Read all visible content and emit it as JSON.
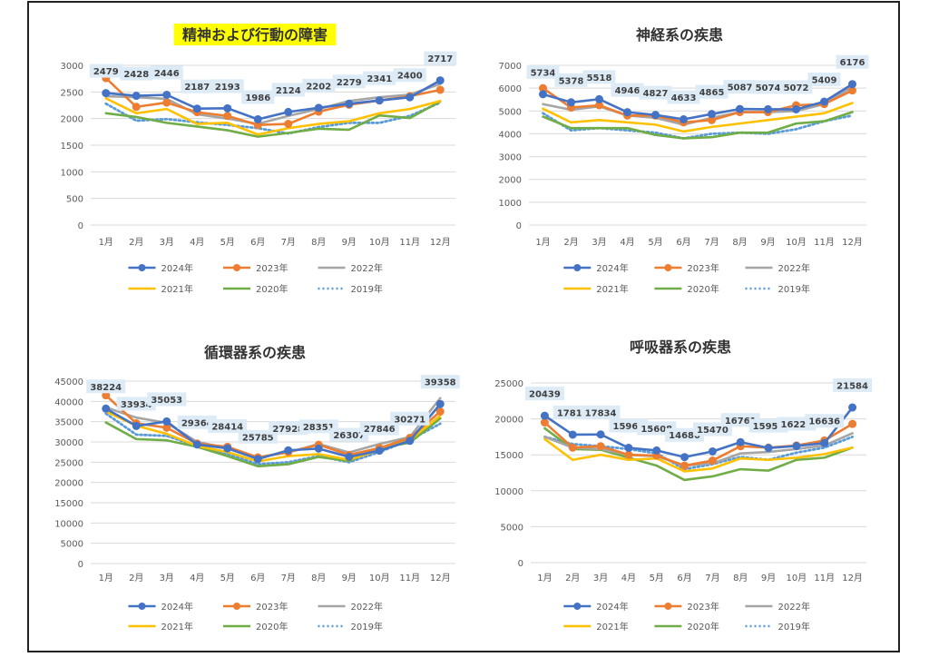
{
  "months": [
    "1月",
    "2月",
    "3月",
    "4月",
    "5月",
    "6月",
    "7月",
    "8月",
    "9月",
    "10月",
    "11月",
    "12月"
  ],
  "series_styles": [
    {
      "name": "2024年",
      "color": "#4472C4",
      "marker": true,
      "dash": ""
    },
    {
      "name": "2023年",
      "color": "#ED7D31",
      "marker": true,
      "dash": ""
    },
    {
      "name": "2022年",
      "color": "#A5A5A5",
      "marker": false,
      "dash": ""
    },
    {
      "name": "2021年",
      "color": "#FFC000",
      "marker": false,
      "dash": ""
    },
    {
      "name": "2020年",
      "color": "#70AD47",
      "marker": false,
      "dash": ""
    },
    {
      "name": "2019年",
      "color": "#5B9BD5",
      "marker": false,
      "dash": "2 3"
    }
  ],
  "label_bg": "#DDEBF7",
  "title_highlight": "#FFFF00",
  "chart_data": [
    {
      "type": "line",
      "title": "精神および行動の障害",
      "highlight_title": true,
      "ylim": [
        0,
        3000
      ],
      "ytick": 500,
      "categories": [
        "1月",
        "2月",
        "3月",
        "4月",
        "5月",
        "6月",
        "7月",
        "8月",
        "9月",
        "10月",
        "11月",
        "12月"
      ],
      "series": [
        {
          "name": "2024年",
          "values": [
            2479,
            2428,
            2446,
            2187,
            2193,
            1986,
            2124,
            2202,
            2279,
            2341,
            2400,
            2717
          ]
        },
        {
          "name": "2023年",
          "values": [
            2760,
            2220,
            2300,
            2120,
            2050,
            1880,
            1900,
            2130,
            2260,
            2340,
            2420,
            2540
          ]
        },
        {
          "name": "2022年",
          "values": [
            2420,
            2400,
            2370,
            2080,
            2000,
            1900,
            2050,
            2180,
            2330,
            2400,
            2450,
            2650
          ]
        },
        {
          "name": "2021年",
          "values": [
            2380,
            2100,
            2180,
            1900,
            1920,
            1700,
            1820,
            1900,
            1950,
            2100,
            2180,
            2330
          ]
        },
        {
          "name": "2020年",
          "values": [
            2100,
            2030,
            1920,
            1850,
            1780,
            1660,
            1730,
            1810,
            1790,
            2060,
            2010,
            2320
          ]
        },
        {
          "name": "2019年",
          "values": [
            2280,
            1960,
            1990,
            1930,
            1880,
            1820,
            1720,
            1840,
            1920,
            1920,
            2050,
            2300
          ]
        }
      ],
      "data_labels": [
        2479,
        2428,
        2446,
        2187,
        2193,
        1986,
        2124,
        2202,
        2279,
        2341,
        2400,
        2717
      ],
      "legend": "bottom"
    },
    {
      "type": "line",
      "title": "神経系の疾患",
      "highlight_title": false,
      "ylim": [
        0,
        7000
      ],
      "ytick": 1000,
      "categories": [
        "1月",
        "2月",
        "3月",
        "4月",
        "5月",
        "6月",
        "7月",
        "8月",
        "9月",
        "10月",
        "11月",
        "12月"
      ],
      "series": [
        {
          "name": "2024年",
          "values": [
            5734,
            5378,
            5518,
            4946,
            4827,
            4633,
            4865,
            5087,
            5074,
            5072,
            5409,
            6176
          ]
        },
        {
          "name": "2023年",
          "values": [
            6000,
            5150,
            5250,
            4800,
            4800,
            4500,
            4600,
            4950,
            4950,
            5250,
            5300,
            5900
          ]
        },
        {
          "name": "2022年",
          "values": [
            5300,
            5050,
            5200,
            4800,
            4700,
            4400,
            4700,
            4950,
            4950,
            5000,
            5300,
            6050
          ]
        },
        {
          "name": "2021年",
          "values": [
            5100,
            4500,
            4600,
            4500,
            4400,
            4100,
            4300,
            4450,
            4600,
            4750,
            4900,
            5350
          ]
        },
        {
          "name": "2020年",
          "values": [
            4750,
            4250,
            4250,
            4250,
            3950,
            3800,
            3850,
            4050,
            4050,
            4450,
            4550,
            4950
          ]
        },
        {
          "name": "2019年",
          "values": [
            4900,
            4150,
            4250,
            4150,
            4050,
            3800,
            4000,
            4050,
            4000,
            4200,
            4550,
            4800
          ]
        }
      ],
      "data_labels": [
        5734,
        5378,
        5518,
        4946,
        4827,
        4633,
        4865,
        5087,
        5074,
        5072,
        5409,
        6176
      ],
      "legend": "bottom"
    },
    {
      "type": "line",
      "title": "循環器系の疾患",
      "highlight_title": false,
      "ylim": [
        0,
        45000
      ],
      "ytick": 5000,
      "categories": [
        "1月",
        "2月",
        "3月",
        "4月",
        "5月",
        "6月",
        "7月",
        "8月",
        "9月",
        "10月",
        "11月",
        "12月"
      ],
      "series": [
        {
          "name": "2024年",
          "values": [
            38224,
            33934,
            35053,
            29364,
            28414,
            25785,
            27928,
            28351,
            26307,
            27846,
            30271,
            39358
          ]
        },
        {
          "name": "2023年",
          "values": [
            41500,
            34600,
            33500,
            29600,
            28800,
            26200,
            27500,
            29300,
            26800,
            28500,
            31000,
            37500
          ]
        },
        {
          "name": "2022年",
          "values": [
            38500,
            36000,
            34700,
            30000,
            28500,
            26200,
            27400,
            29500,
            27400,
            29500,
            31200,
            40800
          ]
        },
        {
          "name": "2021年",
          "values": [
            37500,
            34000,
            32000,
            29000,
            27500,
            25200,
            26500,
            27000,
            25600,
            28000,
            30500,
            36500
          ]
        },
        {
          "name": "2020年",
          "values": [
            34800,
            30700,
            30400,
            28800,
            26500,
            24000,
            24500,
            26300,
            25300,
            28500,
            29800,
            35800
          ]
        },
        {
          "name": "2019年",
          "values": [
            37000,
            31800,
            31500,
            29000,
            27000,
            24500,
            25000,
            26500,
            25000,
            27500,
            30500,
            34500
          ]
        }
      ],
      "data_labels": [
        38224,
        33934,
        35053,
        29364,
        28414,
        25785,
        27928,
        28351,
        26307,
        27846,
        30271,
        39358
      ],
      "legend": "bottom"
    },
    {
      "type": "line",
      "title": "呼吸器系の疾患",
      "highlight_title": false,
      "ylim": [
        0,
        25000
      ],
      "ytick": 5000,
      "categories": [
        "1月",
        "2月",
        "3月",
        "4月",
        "5月",
        "6月",
        "7月",
        "8月",
        "9月",
        "10月",
        "11月",
        "12月"
      ],
      "series": [
        {
          "name": "2024年",
          "values": [
            20439,
            17810,
            17834,
            15966,
            15608,
            14680,
            15470,
            16761,
            15952,
            16224,
            16636,
            21584
          ]
        },
        {
          "name": "2023年",
          "values": [
            19500,
            16000,
            16200,
            15000,
            14900,
            13500,
            14200,
            16200,
            16000,
            16300,
            17000,
            19300
          ]
        },
        {
          "name": "2022年",
          "values": [
            17500,
            16000,
            15800,
            15000,
            14800,
            13500,
            13800,
            15200,
            15400,
            15800,
            16300,
            18000
          ]
        },
        {
          "name": "2021年",
          "values": [
            17200,
            14300,
            15000,
            14300,
            14500,
            12700,
            13100,
            14500,
            14300,
            14600,
            15100,
            16000
          ]
        },
        {
          "name": "2020年",
          "values": [
            18700,
            15800,
            15700,
            14600,
            13500,
            11500,
            12000,
            13000,
            12800,
            14300,
            14600,
            16000
          ]
        },
        {
          "name": "2019年",
          "values": [
            17500,
            16500,
            16200,
            15800,
            15200,
            13000,
            13700,
            14700,
            14300,
            15300,
            16000,
            17500
          ]
        }
      ],
      "data_labels": [
        20439,
        17810,
        17834,
        15966,
        15608,
        14680,
        15470,
        16761,
        15952,
        16224,
        16636,
        21584
      ],
      "legend": "bottom"
    }
  ]
}
